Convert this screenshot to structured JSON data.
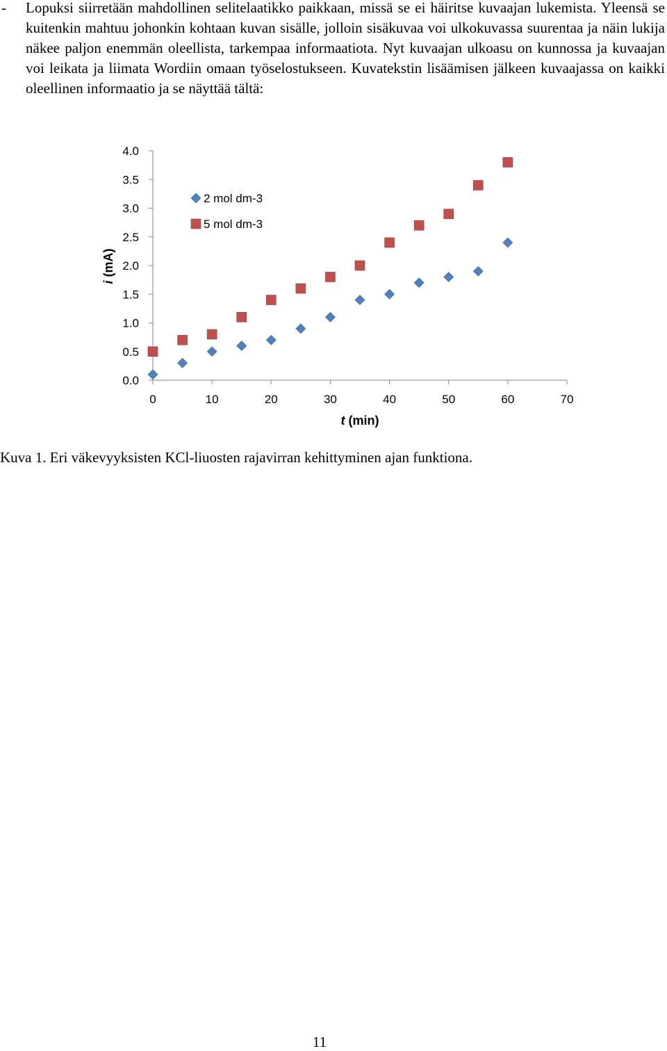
{
  "paragraph": {
    "bullet": "-",
    "text": "Lopuksi siirretään mahdollinen selitelaatikko paikkaan, missä se ei häiritse kuvaajan lukemista. Yleensä se kuitenkin mahtuu johonkin kohtaan kuvan sisälle, jolloin sisäkuvaa voi ulkokuvassa suurentaa ja näin lukija näkee paljon enemmän oleellista, tarkempaa informaatiota. Nyt kuvaajan ulkoasu on kunnossa ja kuvaajan voi leikata ja liimata Wordiin omaan työselostukseen. Kuvatekstin lisäämisen jälkeen kuvaajassa on kaikki oleellinen informaatio ja se näyttää tältä:"
  },
  "chart_data": {
    "type": "scatter",
    "xlabel_italic": "t",
    "xlabel_rest": " (min)",
    "ylabel_italic": "i",
    "ylabel_rest": " (mA)",
    "xlim": [
      0,
      70
    ],
    "ylim": [
      0,
      4
    ],
    "xticks": [
      "0",
      "10",
      "20",
      "30",
      "40",
      "50",
      "60",
      "70"
    ],
    "yticks": [
      "0.0",
      "0.5",
      "1.0",
      "1.5",
      "2.0",
      "2.5",
      "3.0",
      "3.5",
      "4.0"
    ],
    "grid": false,
    "legend_position": "top-left",
    "series": [
      {
        "name": "2 mol dm-3",
        "marker": "diamond",
        "color": "#4f81bd",
        "x": [
          0,
          5,
          10,
          15,
          20,
          25,
          30,
          35,
          40,
          45,
          50,
          55,
          60
        ],
        "y": [
          0.1,
          0.3,
          0.5,
          0.6,
          0.7,
          0.9,
          1.1,
          1.4,
          1.5,
          1.7,
          1.8,
          1.9,
          2.4
        ]
      },
      {
        "name": "5 mol dm-3",
        "marker": "square",
        "color": "#c0504d",
        "x": [
          0,
          5,
          10,
          15,
          20,
          25,
          30,
          35,
          40,
          45,
          50,
          55,
          60
        ],
        "y": [
          0.5,
          0.7,
          0.8,
          1.1,
          1.4,
          1.6,
          1.8,
          2.0,
          2.4,
          2.7,
          2.9,
          3.4,
          3.8
        ]
      }
    ]
  },
  "caption": "Kuva 1. Eri väkevyyksisten KCl-liuosten rajavirran kehittyminen ajan funktiona.",
  "page_number": "11"
}
